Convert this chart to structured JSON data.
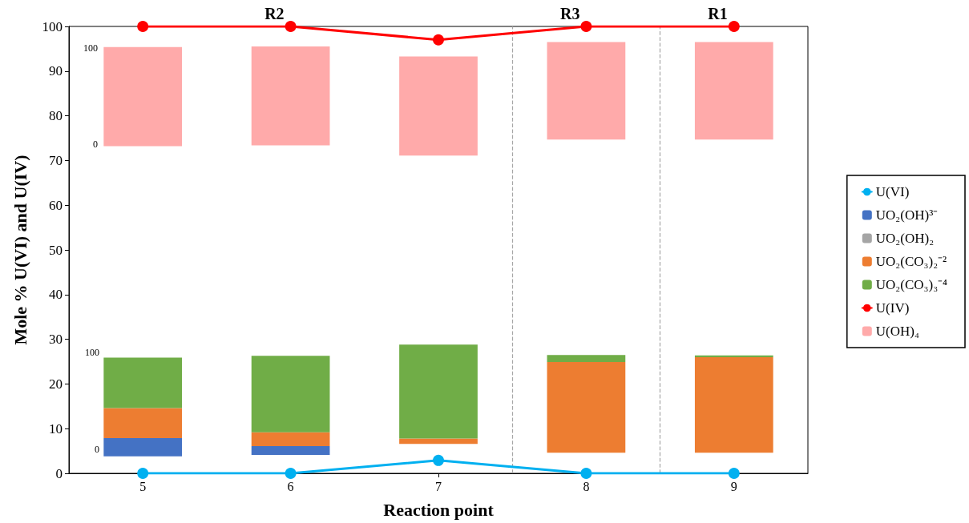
{
  "chart_data": {
    "type": "bar",
    "xlabel": "Reaction point",
    "ylabel": "Mole % U(VI) and U(IV)",
    "x": [
      5,
      6,
      7,
      8,
      9
    ],
    "xlim": [
      4.5,
      9.5
    ],
    "xticks": [
      5,
      6,
      7,
      8,
      9
    ],
    "ylim": [
      0,
      100
    ],
    "yticks": [
      0,
      10,
      20,
      30,
      40,
      50,
      60,
      70,
      80,
      90,
      100
    ],
    "grid": false,
    "legend": "right",
    "marker": "circle",
    "series": [
      {
        "name": "U(VI)",
        "type": "line",
        "color": "#00b0f0",
        "values": [
          0,
          0,
          2.9,
          0,
          0
        ]
      },
      {
        "name": "UO₂(OH)³⁻",
        "color": "#4472c4",
        "base": [
          3.8,
          4.1,
          null,
          null,
          null
        ],
        "values": [
          4.1,
          2.0,
          null,
          null,
          null
        ]
      },
      {
        "name": "UO₂(OH)₂",
        "color": "#a5a5a5",
        "values": [
          null,
          null,
          null,
          null,
          null
        ]
      },
      {
        "name": "UO₂(CO₃)₂⁻²",
        "color": "#ed7d31",
        "base": [
          7.9,
          6.1,
          6.6,
          4.6,
          4.6
        ],
        "values": [
          6.7,
          3.1,
          1.2,
          20.3,
          21.4
        ]
      },
      {
        "name": "UO₂(CO₃)₃⁻⁴",
        "color": "#70ad47",
        "base": [
          14.6,
          9.2,
          7.8,
          24.9,
          26.0
        ],
        "values": [
          11.3,
          17.1,
          21.0,
          1.6,
          0.4
        ]
      },
      {
        "name": "U(IV)",
        "type": "line",
        "color": "#ff0000",
        "values": [
          100,
          100,
          97,
          100,
          100
        ]
      },
      {
        "name": "U(OH)₄",
        "color": "#ffaaaa",
        "base": [
          73.2,
          73.4,
          71.1,
          74.7,
          74.7
        ],
        "values": [
          22.2,
          22.1,
          22.2,
          21.8,
          21.8
        ]
      }
    ],
    "ref_lines": [
      {
        "axis": "x",
        "value": 7.5,
        "color": "#a6a6a6",
        "line_style": "dashed"
      },
      {
        "axis": "x",
        "value": 8.5,
        "color": "#a6a6a6",
        "line_style": "dashed"
      }
    ],
    "annotations": [
      {
        "text": "R2",
        "x": 6,
        "y": 100
      },
      {
        "text": "R3",
        "x": 8,
        "y": 100
      },
      {
        "text": "R1",
        "x": 9,
        "y": 100
      },
      "100",
      "0",
      "100",
      "0"
    ]
  }
}
